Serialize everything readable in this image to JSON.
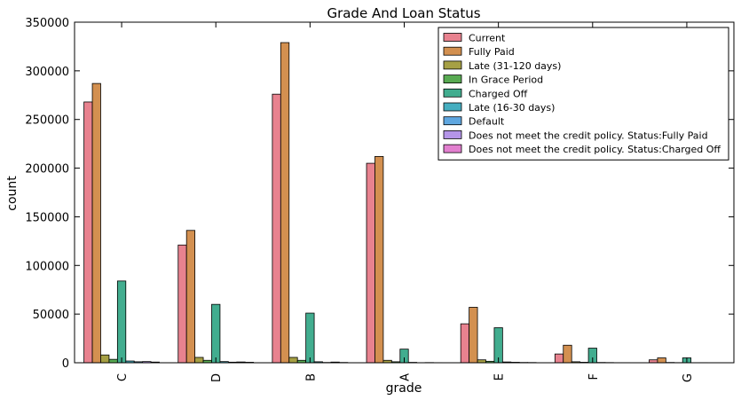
{
  "chart_data": {
    "type": "bar",
    "title": "Grade And Loan Status",
    "xlabel": "grade",
    "ylabel": "count",
    "ylim": [
      0,
      350000
    ],
    "yticks": [
      0,
      50000,
      100000,
      150000,
      200000,
      250000,
      300000,
      350000
    ],
    "yticklabels": [
      "0",
      "50000",
      "100000",
      "150000",
      "200000",
      "250000",
      "300000",
      "350000"
    ],
    "grid": false,
    "legend_position": "top-right",
    "categories": [
      "C",
      "D",
      "B",
      "A",
      "E",
      "F",
      "G"
    ],
    "series": [
      {
        "name": "Current",
        "color": "#e8828f",
        "values": [
          268000,
          121000,
          276000,
          205000,
          40000,
          9000,
          3000
        ]
      },
      {
        "name": "Fully Paid",
        "color": "#d39050",
        "values": [
          287000,
          136000,
          329000,
          212000,
          57000,
          18000,
          5000
        ]
      },
      {
        "name": "Late (31-120 days)",
        "color": "#a6a044",
        "values": [
          8000,
          5500,
          5500,
          2500,
          3000,
          1000,
          300
        ]
      },
      {
        "name": "In Grace Period",
        "color": "#58aa52",
        "values": [
          3500,
          2500,
          2500,
          1000,
          1500,
          500,
          150
        ]
      },
      {
        "name": "Charged Off",
        "color": "#42ad8f",
        "values": [
          84000,
          60000,
          51000,
          14000,
          36000,
          15000,
          5000
        ]
      },
      {
        "name": "Late (16-30 days)",
        "color": "#45aec0",
        "values": [
          1800,
          1200,
          1000,
          400,
          800,
          300,
          100
        ]
      },
      {
        "name": "Default",
        "color": "#5fa7e0",
        "values": [
          1000,
          600,
          300,
          100,
          500,
          200,
          100
        ]
      },
      {
        "name": "Does not meet the credit policy. Status:Fully Paid",
        "color": "#b495e8",
        "values": [
          1200,
          800,
          700,
          200,
          300,
          100,
          50
        ]
      },
      {
        "name": "Does not meet the credit policy. Status:Charged Off",
        "color": "#e27fcf",
        "values": [
          700,
          500,
          300,
          100,
          250,
          100,
          50
        ]
      }
    ]
  }
}
